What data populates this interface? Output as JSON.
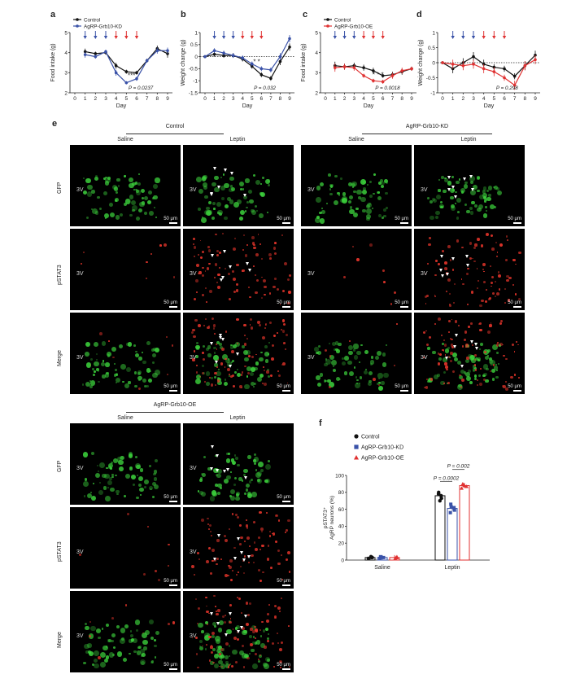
{
  "panels": {
    "a": {
      "letter": "a"
    },
    "b": {
      "letter": "b"
    },
    "c": {
      "letter": "c"
    },
    "d": {
      "letter": "d"
    },
    "e": {
      "letter": "e"
    },
    "f": {
      "letter": "f"
    }
  },
  "colors": {
    "control": "#111111",
    "kd": "#3a52a8",
    "oe": "#e03131",
    "green": "#3cd23c",
    "red": "#e2342a"
  },
  "chart_data": [
    {
      "id": "a",
      "type": "line",
      "xlabel": "Day",
      "ylabel": "Food intake (g)",
      "ylim": [
        2,
        5
      ],
      "yticks": [
        2,
        3,
        4,
        5
      ],
      "x": [
        1,
        2,
        3,
        4,
        5,
        6,
        7,
        8,
        9
      ],
      "series": [
        {
          "name": "Control",
          "color": "#111111",
          "values": [
            4.05,
            3.95,
            4.0,
            3.35,
            3.05,
            3.0,
            3.6,
            4.2,
            3.95
          ],
          "err": [
            0.15,
            0.1,
            0.1,
            0.15,
            0.1,
            0.1,
            0.1,
            0.15,
            0.2
          ]
        },
        {
          "name": "AgRP-Grb10-KD",
          "color": "#3a52a8",
          "values": [
            3.9,
            3.8,
            4.05,
            3.0,
            2.5,
            2.7,
            3.6,
            4.1,
            4.1
          ],
          "err": [
            0.15,
            0.1,
            0.1,
            0.15,
            0.08,
            0.1,
            0.1,
            0.15,
            0.15
          ]
        }
      ],
      "pvalue": "P = 0.0237",
      "stars": "***",
      "arrows": [
        "blue",
        "blue",
        "blue",
        "red",
        "red",
        "red"
      ]
    },
    {
      "id": "b",
      "type": "line",
      "xlabel": "Day",
      "ylabel": "Weight change (g)",
      "ylim": [
        -1.5,
        1.0
      ],
      "yticks": [
        -1.5,
        -1.0,
        -0.5,
        0,
        0.5,
        1.0
      ],
      "x": [
        0,
        1,
        2,
        3,
        4,
        5,
        6,
        7,
        8,
        9
      ],
      "series": [
        {
          "name": "Control",
          "color": "#111111",
          "values": [
            0,
            0.1,
            0.05,
            0.05,
            -0.1,
            -0.4,
            -0.75,
            -0.9,
            -0.2,
            0.4
          ],
          "err": [
            0.05,
            0.1,
            0.1,
            0.1,
            0.1,
            0.1,
            0.1,
            0.1,
            0.15,
            0.15
          ]
        },
        {
          "name": "AgRP-Grb10-KD",
          "color": "#3a52a8",
          "values": [
            0,
            0.25,
            0.15,
            0.05,
            -0.05,
            -0.3,
            -0.5,
            -0.55,
            0,
            0.75
          ],
          "err": [
            0.05,
            0.1,
            0.1,
            0.1,
            0.1,
            0.1,
            0.1,
            0.1,
            0.15,
            0.15
          ]
        }
      ],
      "pvalue": "P = 0.032",
      "stars": "*  *",
      "arrows": [
        "blue",
        "blue",
        "blue",
        "red",
        "red",
        "red"
      ]
    },
    {
      "id": "c",
      "type": "line",
      "xlabel": "Day",
      "ylabel": "Food intake (g)",
      "ylim": [
        2,
        5
      ],
      "yticks": [
        2,
        3,
        4,
        5
      ],
      "x": [
        1,
        2,
        3,
        4,
        5,
        6,
        7,
        8,
        9
      ],
      "series": [
        {
          "name": "Control",
          "color": "#111111",
          "values": [
            3.35,
            3.3,
            3.35,
            3.25,
            3.1,
            2.85,
            2.9,
            3.05,
            3.2
          ],
          "err": [
            0.2,
            0.15,
            0.15,
            0.15,
            0.15,
            0.1,
            0.15,
            0.15,
            0.1
          ]
        },
        {
          "name": "AgRP-Grb10-OE",
          "color": "#e03131",
          "values": [
            3.25,
            3.3,
            3.25,
            2.85,
            2.6,
            2.55,
            2.85,
            3.1,
            3.2
          ],
          "err": [
            0.2,
            0.15,
            0.15,
            0.1,
            0.1,
            0.1,
            0.15,
            0.15,
            0.1
          ]
        }
      ],
      "pvalue": "P = 0.0018",
      "stars": "*  *  *",
      "arrows": [
        "blue",
        "blue",
        "blue",
        "red",
        "red",
        "red"
      ]
    },
    {
      "id": "d",
      "type": "line",
      "xlabel": "Day",
      "ylabel": "Weight change (g)",
      "ylim": [
        -1.0,
        1.0
      ],
      "yticks": [
        -1.0,
        -0.5,
        0,
        0.5,
        1.0
      ],
      "x": [
        0,
        1,
        2,
        3,
        4,
        5,
        6,
        7,
        8,
        9
      ],
      "series": [
        {
          "name": "Control",
          "color": "#111111",
          "values": [
            0,
            -0.2,
            0.0,
            0.2,
            -0.05,
            -0.15,
            -0.2,
            -0.45,
            -0.1,
            0.25
          ],
          "err": [
            0.05,
            0.15,
            0.15,
            0.15,
            0.15,
            0.1,
            0.1,
            0.1,
            0.15,
            0.15
          ]
        },
        {
          "name": "AgRP-Grb10-OE",
          "color": "#e03131",
          "values": [
            0,
            -0.05,
            -0.1,
            -0.05,
            -0.2,
            -0.3,
            -0.5,
            -0.75,
            -0.1,
            0.1
          ],
          "err": [
            0.05,
            0.15,
            0.15,
            0.15,
            0.15,
            0.15,
            0.1,
            0.15,
            0.15,
            0.15
          ]
        }
      ],
      "pvalue": "P = 0.298",
      "stars": "",
      "arrows": [
        "blue",
        "blue",
        "blue",
        "red",
        "red",
        "red"
      ]
    },
    {
      "id": "f",
      "type": "bar",
      "ylabel_line1": "pSTAT3⁺",
      "ylabel_line2": "AgRP neurons (%)",
      "ylim": [
        0,
        100
      ],
      "yticks": [
        0,
        20,
        40,
        60,
        80,
        100
      ],
      "categories": [
        "Saline",
        "Leptin"
      ],
      "series": [
        {
          "name": "Control",
          "color": "#111111",
          "marker": "circle",
          "values": [
            3,
            76
          ],
          "points": [
            [
              2,
              3,
              4,
              3
            ],
            [
              70,
              73,
              78,
              80,
              76
            ]
          ]
        },
        {
          "name": "AgRP-Grb10-KD",
          "color": "#3a52a8",
          "marker": "square",
          "values": [
            3,
            61
          ],
          "points": [
            [
              2,
              3,
              4,
              3
            ],
            [
              56,
              59,
              63,
              66,
              62
            ]
          ]
        },
        {
          "name": "AgRP-Grb10-OE",
          "color": "#e03131",
          "marker": "triangle",
          "values": [
            3,
            88
          ],
          "points": [
            [
              2,
              3,
              4,
              3
            ],
            [
              85,
              87,
              89,
              90,
              88
            ]
          ]
        }
      ],
      "comparisons": [
        {
          "label": "P = 0.0002"
        },
        {
          "label": "P = 0.002"
        }
      ]
    }
  ],
  "legend_a": {
    "control": "Control",
    "kd": "AgRP-Grb10-KD"
  },
  "legend_c": {
    "control": "Control",
    "oe": "AgRP-Grb10-OE"
  },
  "micro": {
    "group_control": "Control",
    "group_kd": "AgRP-Grb10-KD",
    "group_oe": "AgRP-Grb10-OE",
    "saline": "Saline",
    "leptin": "Leptin",
    "rows": [
      "GFP",
      "pSTAT3",
      "Merge"
    ],
    "ventricle": "3V",
    "scalebar": "50 μm"
  }
}
